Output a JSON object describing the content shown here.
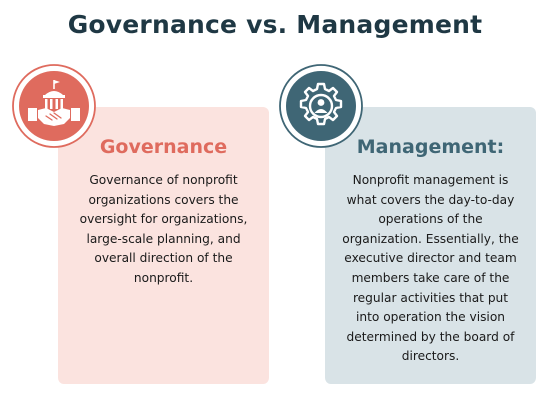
{
  "title": "Governance vs. Management",
  "colors": {
    "title": "#1f3844",
    "governance_accent": "#df6b5e",
    "governance_card": "#fbe3df",
    "management_accent": "#3f6675",
    "management_card": "#d9e3e7"
  },
  "governance": {
    "heading": "Governance",
    "icon": "handshake-building-icon",
    "body": "Governance of nonprofit organizations covers the oversight for organizations, large-scale planning, and overall direction of the nonprofit."
  },
  "management": {
    "heading": "Management:",
    "icon": "gear-person-icon",
    "body": "Nonprofit management is what covers the day-to-day operations of the organization. Essentially, the executive director and team members take care of the regular activities that put into operation the vision determined by the board of directors."
  }
}
